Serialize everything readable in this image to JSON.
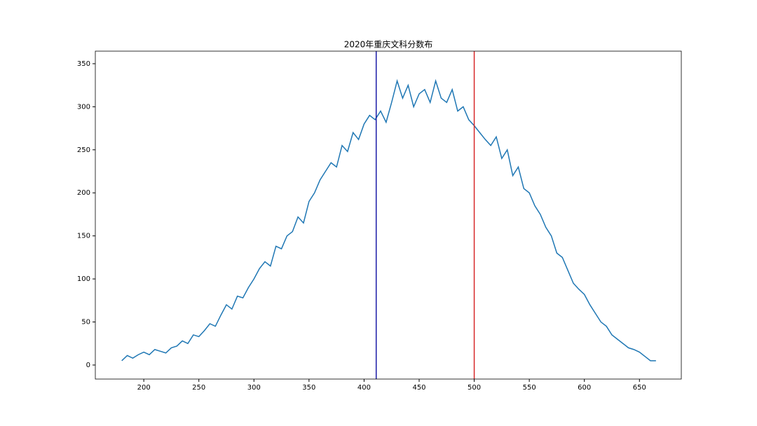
{
  "chart_data": {
    "type": "line",
    "title": "2020年重庆文科分数布",
    "x": [
      180,
      185,
      190,
      195,
      200,
      205,
      210,
      215,
      220,
      225,
      230,
      235,
      240,
      245,
      250,
      255,
      260,
      265,
      270,
      275,
      280,
      285,
      290,
      295,
      300,
      305,
      310,
      315,
      320,
      325,
      330,
      335,
      340,
      345,
      350,
      355,
      360,
      365,
      370,
      375,
      380,
      385,
      390,
      395,
      400,
      405,
      410,
      415,
      420,
      425,
      430,
      435,
      440,
      445,
      450,
      455,
      460,
      465,
      470,
      475,
      480,
      485,
      490,
      495,
      500,
      505,
      510,
      515,
      520,
      525,
      530,
      535,
      540,
      545,
      550,
      555,
      560,
      565,
      570,
      575,
      580,
      585,
      590,
      595,
      600,
      605,
      610,
      615,
      620,
      625,
      630,
      635,
      640,
      645,
      650,
      655,
      660,
      665
    ],
    "series": [
      {
        "color": "#1f77b4",
        "values": [
          5,
          11,
          8,
          12,
          15,
          12,
          18,
          16,
          14,
          20,
          22,
          28,
          25,
          35,
          33,
          40,
          48,
          45,
          58,
          70,
          65,
          80,
          78,
          90,
          100,
          112,
          120,
          115,
          138,
          135,
          150,
          155,
          172,
          165,
          190,
          200,
          215,
          225,
          235,
          230,
          255,
          248,
          270,
          262,
          280,
          290,
          285,
          295,
          282,
          305,
          330,
          310,
          325,
          300,
          315,
          320,
          305,
          330,
          310,
          305,
          320,
          295,
          300,
          285,
          278,
          270,
          262,
          255,
          265,
          240,
          250,
          220,
          230,
          205,
          200,
          185,
          175,
          160,
          150,
          130,
          125,
          110,
          95,
          88,
          82,
          70,
          60,
          50,
          45,
          35,
          30,
          25,
          20,
          18,
          15,
          10,
          5,
          5
        ]
      }
    ],
    "vlines": [
      {
        "x": 411,
        "color": "#1a1aa6"
      },
      {
        "x": 500,
        "color": "#d62728"
      }
    ],
    "xlim": [
      156,
      688
    ],
    "ylim": [
      -16.3,
      364.6
    ],
    "xticks": [
      200,
      250,
      300,
      350,
      400,
      450,
      500,
      550,
      600,
      650
    ],
    "yticks": [
      0,
      50,
      100,
      150,
      200,
      250,
      300,
      350
    ]
  }
}
